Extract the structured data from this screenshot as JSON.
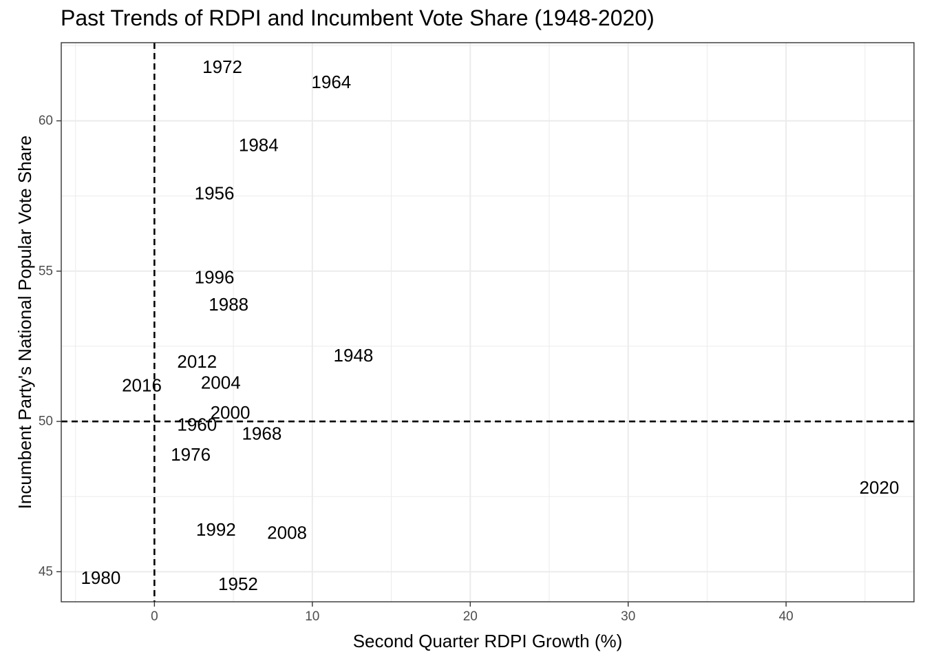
{
  "chart_data": {
    "type": "scatter",
    "title": "Past Trends of RDPI and Incumbent Vote Share (1948-2020)",
    "xlabel": "Second Quarter RDPI Growth (%)",
    "ylabel": "Incumbent Party's National Popular Vote Share",
    "xlim": [
      -5.9,
      48.1
    ],
    "ylim": [
      44.0,
      62.6
    ],
    "x_ticks": [
      0,
      10,
      20,
      30,
      40
    ],
    "y_ticks": [
      45,
      50,
      55,
      60
    ],
    "grid": true,
    "reference_lines": {
      "x": 0,
      "y": 50,
      "style": "dashed"
    },
    "points": [
      {
        "label": "1948",
        "x": 12.6,
        "y": 52.2
      },
      {
        "label": "1952",
        "x": 5.3,
        "y": 44.6
      },
      {
        "label": "1956",
        "x": 3.8,
        "y": 57.6
      },
      {
        "label": "1960",
        "x": 2.7,
        "y": 49.9
      },
      {
        "label": "1964",
        "x": 11.2,
        "y": 61.3
      },
      {
        "label": "1968",
        "x": 6.8,
        "y": 49.6
      },
      {
        "label": "1972",
        "x": 4.3,
        "y": 61.8
      },
      {
        "label": "1976",
        "x": 2.3,
        "y": 48.9
      },
      {
        "label": "1980",
        "x": -3.4,
        "y": 44.8
      },
      {
        "label": "1984",
        "x": 6.6,
        "y": 59.2
      },
      {
        "label": "1988",
        "x": 4.7,
        "y": 53.9
      },
      {
        "label": "1992",
        "x": 3.9,
        "y": 46.4
      },
      {
        "label": "1996",
        "x": 3.8,
        "y": 54.8
      },
      {
        "label": "2000",
        "x": 4.8,
        "y": 50.3
      },
      {
        "label": "2004",
        "x": 4.2,
        "y": 51.3
      },
      {
        "label": "2008",
        "x": 8.4,
        "y": 46.3
      },
      {
        "label": "2012",
        "x": 2.7,
        "y": 52.0
      },
      {
        "label": "2016",
        "x": -0.8,
        "y": 51.2
      },
      {
        "label": "2020",
        "x": 45.9,
        "y": 47.8
      }
    ]
  }
}
